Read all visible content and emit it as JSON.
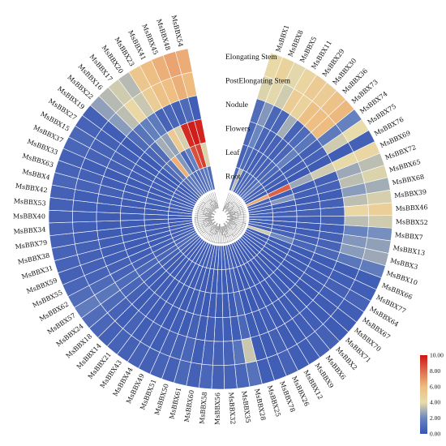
{
  "chart_data": {
    "type": "heatmap",
    "layout": "circular",
    "tissues": [
      "Elongating Stem",
      "PostElongating Stem",
      "Nodule",
      "Flowers",
      "Leaf",
      "Root"
    ],
    "genes": [
      "MsBBX1",
      "MsBBX8",
      "MsBBX5",
      "MsBBX11",
      "MsBBX29",
      "MsBBX30",
      "MsBBX36",
      "MsBBX73",
      "MsBBX74",
      "MsBBX75",
      "MsBBX76",
      "MsBBX69",
      "MsBBX72",
      "MsBBX65",
      "MsBBX68",
      "MsBBX39",
      "MsBBX46",
      "MsBBX52",
      "MsBBX7",
      "MsBBX13",
      "MsBBX3",
      "MsBBX10",
      "MsBBX66",
      "MsBBX77",
      "MsBBX64",
      "MsBBX67",
      "MsBBX70",
      "MsBBX71",
      "MsBBX2",
      "MsBBX6",
      "MsBBX9",
      "MsBBX12",
      "MsBBX26",
      "MsBBX78",
      "MsBBX25",
      "MsBBX28",
      "MsBBX35",
      "MsBBX32",
      "MsBBX56",
      "MsBBX58",
      "MsBBX60",
      "MsBBX61",
      "MsBBX50",
      "MsBBX51",
      "MsBBX49",
      "MsBBX44",
      "MsBBX43",
      "MsBBX21",
      "MsBBX14",
      "MsBBX18",
      "MsBBX24",
      "MsBBX57",
      "MsBBX62",
      "MsBBX55",
      "MsBBX59",
      "MsBBX31",
      "MsBBX38",
      "MsBBX79",
      "MsBBX34",
      "MsBBX40",
      "MsBBX53",
      "MsBBX42",
      "MsBBX4",
      "MsBBX63",
      "MsBBX33",
      "MsBBX37",
      "MsBBX15",
      "MsBBX27",
      "MsBBX19",
      "MsBBX22",
      "MsBBX16",
      "MsBBX17",
      "MsBBX20",
      "MsBBX23",
      "MsBBX41",
      "MsBBX45",
      "MsBBX48",
      "MsBBX54"
    ],
    "values": [
      [
        4.2,
        4.6,
        3.9,
        4.5,
        5.1,
        5.0,
        5.6,
        6.1,
        1.8,
        4.0,
        0.5,
        4.4,
        3.3,
        3.8,
        2.9,
        3.7,
        4.8,
        3.6,
        2.2,
        2.6,
        2.8,
        1.6,
        0.4,
        0.4,
        0.6,
        0.4,
        0.3,
        0.3,
        0.5,
        0.5,
        0.4,
        0.4,
        0.6,
        0.4,
        0.4,
        1.2,
        0.7,
        0.6,
        0.5,
        0.7,
        0.5,
        0.8,
        0.5,
        0.6,
        0.5,
        0.6,
        0.5,
        0.6,
        0.5,
        0.7,
        1.0,
        1.6,
        1.0,
        0.7,
        0.5,
        0.6,
        0.6,
        0.5,
        0.5,
        0.5,
        0.5,
        0.5,
        0.7,
        0.6,
        0.5,
        0.7,
        0.8,
        0.6,
        0.5,
        2.6,
        3.2,
        3.6,
        3.2,
        5.4,
        5.8,
        6.3,
        6.6,
        6.4
      ],
      [
        3.8,
        3.9,
        3.6,
        5.0,
        4.6,
        5.7,
        5.9,
        6.0,
        1.5,
        3.6,
        0.4,
        4.1,
        2.8,
        3.3,
        2.5,
        3.3,
        4.4,
        3.3,
        1.9,
        2.4,
        2.5,
        1.4,
        0.3,
        0.4,
        0.5,
        0.4,
        0.3,
        0.3,
        0.4,
        0.4,
        0.3,
        0.3,
        0.5,
        0.3,
        0.3,
        3.5,
        1.3,
        0.6,
        0.5,
        0.6,
        0.4,
        0.7,
        0.5,
        0.5,
        0.4,
        0.5,
        0.4,
        0.6,
        0.4,
        0.6,
        0.9,
        1.4,
        0.9,
        0.6,
        0.5,
        0.5,
        0.5,
        0.4,
        0.4,
        0.4,
        0.4,
        0.4,
        0.6,
        0.5,
        0.4,
        0.6,
        0.6,
        0.5,
        0.4,
        2.5,
        3.3,
        4.3,
        3.5,
        5.0,
        5.7,
        5.9,
        6.3,
        6.0
      ],
      [
        1.0,
        2.4,
        0.8,
        0.7,
        2.9,
        0.6,
        0.9,
        1.4,
        0.5,
        0.6,
        0.3,
        3.6,
        0.5,
        0.6,
        0.4,
        0.5,
        0.6,
        0.5,
        0.4,
        0.5,
        0.6,
        0.8,
        0.3,
        0.3,
        0.4,
        0.3,
        0.2,
        0.2,
        0.3,
        0.3,
        0.3,
        0.3,
        0.4,
        0.3,
        0.3,
        0.8,
        0.4,
        0.4,
        0.4,
        0.4,
        0.3,
        0.5,
        0.3,
        0.4,
        0.3,
        0.4,
        0.3,
        0.4,
        0.3,
        0.5,
        0.7,
        0.9,
        0.6,
        0.5,
        0.4,
        0.4,
        0.4,
        0.3,
        0.3,
        0.3,
        0.3,
        0.3,
        0.5,
        0.4,
        0.3,
        0.5,
        0.5,
        0.4,
        0.3,
        0.9,
        1.3,
        1.7,
        1.5,
        0.6,
        0.7,
        0.5,
        0.9,
        0.4
      ],
      [
        0.8,
        2.0,
        0.7,
        0.5,
        0.6,
        0.5,
        0.7,
        1.8,
        0.4,
        0.5,
        0.2,
        2.8,
        0.4,
        0.5,
        0.3,
        0.4,
        0.5,
        0.4,
        0.3,
        0.4,
        0.5,
        0.7,
        0.3,
        0.3,
        0.3,
        0.2,
        0.2,
        0.2,
        0.3,
        0.3,
        0.2,
        0.2,
        0.3,
        0.2,
        0.2,
        0.7,
        0.3,
        0.3,
        0.3,
        0.3,
        0.2,
        0.4,
        0.3,
        0.3,
        0.3,
        0.3,
        0.3,
        0.4,
        0.3,
        0.4,
        0.6,
        0.8,
        0.5,
        0.4,
        0.3,
        0.3,
        0.3,
        0.3,
        0.3,
        0.3,
        0.3,
        0.3,
        0.4,
        0.3,
        0.3,
        0.4,
        0.4,
        0.3,
        0.3,
        0.7,
        1.0,
        2.9,
        2.6,
        5.2,
        3.7,
        9.5,
        9.8,
        9.6
      ],
      [
        0.6,
        0.9,
        0.6,
        0.5,
        0.6,
        0.5,
        0.8,
        0.9,
        0.4,
        0.5,
        0.2,
        8.2,
        0.4,
        2.4,
        0.3,
        0.4,
        0.5,
        0.4,
        0.3,
        0.4,
        0.6,
        2.1,
        0.3,
        0.3,
        0.3,
        0.2,
        0.2,
        0.2,
        0.3,
        0.3,
        0.2,
        0.2,
        0.3,
        0.2,
        0.2,
        0.6,
        0.3,
        0.3,
        0.3,
        0.3,
        0.2,
        0.3,
        0.3,
        0.3,
        0.3,
        0.3,
        0.3,
        0.4,
        0.3,
        0.4,
        0.5,
        0.7,
        0.5,
        0.4,
        0.3,
        0.3,
        0.3,
        0.3,
        0.3,
        0.3,
        0.3,
        0.3,
        0.4,
        0.3,
        0.3,
        0.4,
        0.4,
        0.3,
        0.3,
        1.0,
        1.4,
        6.3,
        2.4,
        0.8,
        1.8,
        8.6,
        9.0,
        3.8
      ],
      [
        0.9,
        3.2,
        0.8,
        0.7,
        0.8,
        0.7,
        1.0,
        1.6,
        0.5,
        0.6,
        0.3,
        6.5,
        0.5,
        0.6,
        0.4,
        0.5,
        0.6,
        0.5,
        0.4,
        0.5,
        0.6,
        3.6,
        0.3,
        0.3,
        0.4,
        0.3,
        0.2,
        0.2,
        0.3,
        0.3,
        0.3,
        0.3,
        0.4,
        0.3,
        0.3,
        0.8,
        0.4,
        0.4,
        0.4,
        0.4,
        0.3,
        0.5,
        0.3,
        0.4,
        0.3,
        0.4,
        0.3,
        0.4,
        0.3,
        0.5,
        0.7,
        0.9,
        0.6,
        0.5,
        0.4,
        0.4,
        0.4,
        0.3,
        0.3,
        0.3,
        0.3,
        0.3,
        0.5,
        0.4,
        0.3,
        0.5,
        0.5,
        0.4,
        0.3,
        0.8,
        1.2,
        1.6,
        1.4,
        0.9,
        1.1,
        1.3,
        1.5,
        1.0
      ]
    ],
    "colorbar": {
      "min": 0,
      "max": 10,
      "ticks": [
        "0.00",
        "2.00",
        "4.00",
        "6.00",
        "8.00",
        "10.00"
      ],
      "colors": [
        "#3754b3",
        "#6a86c0",
        "#e8dcaa",
        "#eebc80",
        "#dd6b4d",
        "#cf1414"
      ]
    }
  }
}
